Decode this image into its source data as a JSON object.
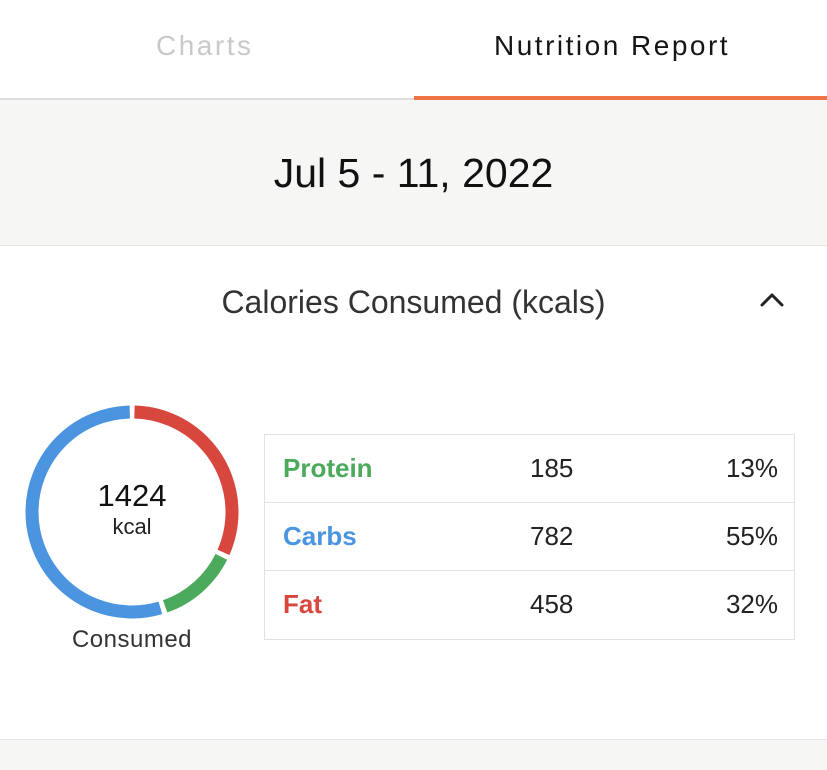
{
  "tabs": [
    {
      "label": "Charts",
      "active": false
    },
    {
      "label": "Nutrition Report",
      "active": true
    }
  ],
  "accent_color": "#f07345",
  "date_range": "Jul 5 - 11, 2022",
  "calories_panel": {
    "title": "Calories Consumed (kcals)",
    "expanded": true,
    "toggle_icon": "chevron-up-icon",
    "total_value": "1424",
    "total_unit": "kcal",
    "caption": "Consumed"
  },
  "macros": [
    {
      "name": "Protein",
      "grams": "185",
      "percent": "13%",
      "color": "#4caa5c"
    },
    {
      "name": "Carbs",
      "grams": "782",
      "percent": "55%",
      "color": "#4a94e0"
    },
    {
      "name": "Fat",
      "grams": "458",
      "percent": "32%",
      "color": "#d8473e"
    }
  ]
}
